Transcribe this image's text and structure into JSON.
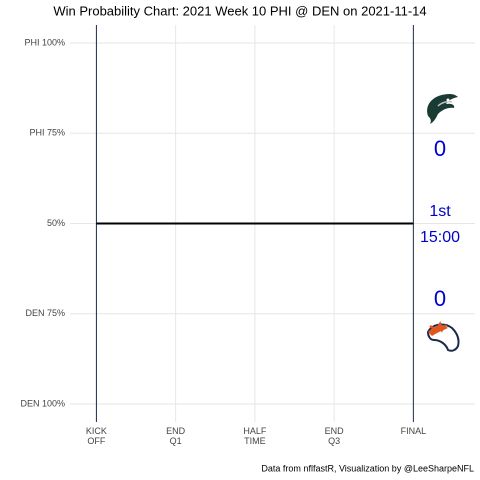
{
  "chart_data": {
    "type": "line",
    "title": "Win Probability Chart: 2021 Week 10 PHI @ DEN on 2021-11-14",
    "caption": "Data from nflfastR, Visualization by @LeeSharpeNFL",
    "x": [
      0,
      3600
    ],
    "series": [
      {
        "color": "#000000",
        "values": [
          0.5,
          0.5
        ]
      }
    ],
    "xlim": [
      -300,
      4300
    ],
    "ylim": [
      -0.05,
      1.05
    ],
    "xticks": [
      {
        "value": 0,
        "label": "KICK\nOFF"
      },
      {
        "value": 900,
        "label": "END\nQ1"
      },
      {
        "value": 1800,
        "label": "HALF\nTIME"
      },
      {
        "value": 2700,
        "label": "END\nQ3"
      },
      {
        "value": 3600,
        "label": "FINAL"
      }
    ],
    "yticks": [
      {
        "value": 1,
        "label": "PHI 100%"
      },
      {
        "value": 0.75,
        "label": "PHI 75%"
      },
      {
        "value": 0.5,
        "label": "50%"
      },
      {
        "value": 0.25,
        "label": "DEN 75%"
      },
      {
        "value": 0,
        "label": "DEN 100%"
      }
    ],
    "grid": true,
    "scores": {
      "PHI": 0,
      "DEN": 0
    },
    "game_clock": {
      "quarter": "1st",
      "time": "15:00"
    },
    "annotation_color": "#0000cc"
  }
}
